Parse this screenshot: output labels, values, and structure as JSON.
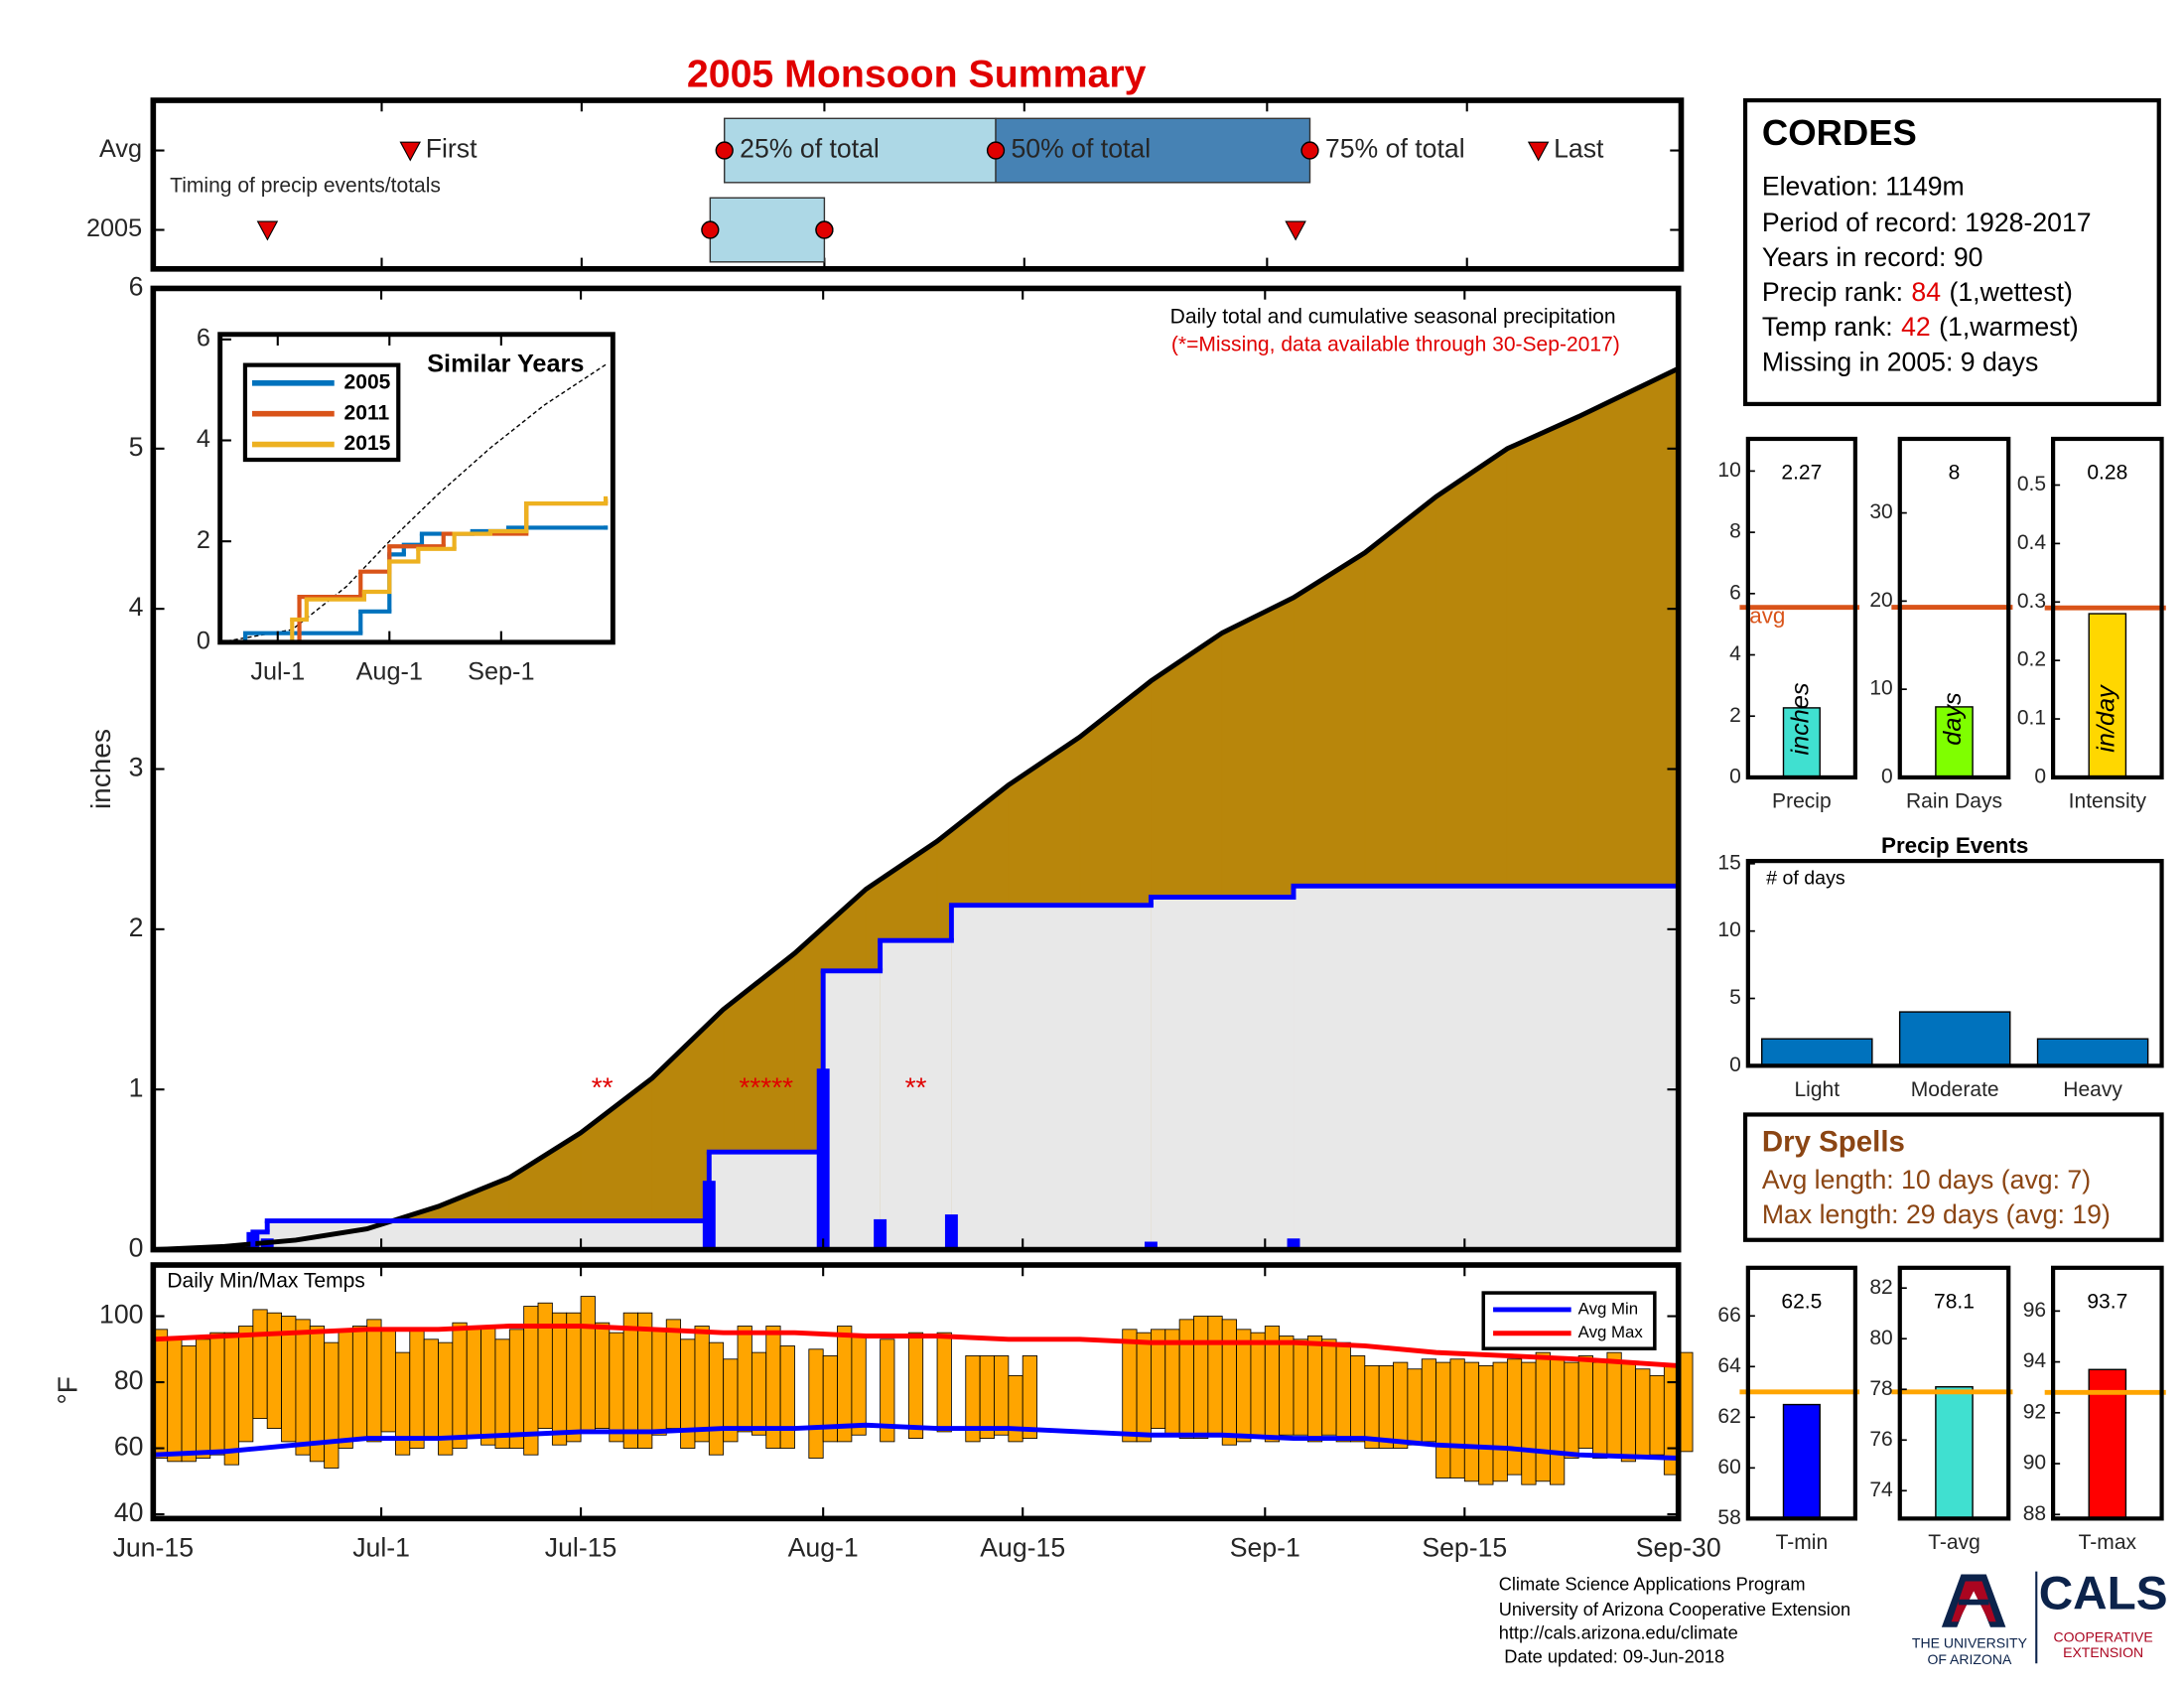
{
  "title": "2005 Monsoon Summary",
  "chart_data": [
    {
      "type": "timeline",
      "annotation": "Timing of precip events/totals",
      "xlim": [
        0,
        107
      ],
      "xticks": [
        0,
        16,
        30,
        47,
        61,
        78,
        92,
        107
      ],
      "marker_labels": {
        "first": "First",
        "p25": "25% of total",
        "p50": "50% of total",
        "p75": "75% of total",
        "last": "Last"
      },
      "rows": [
        {
          "name": "Avg",
          "first": 18,
          "p25": 40,
          "p50": 59,
          "p75": 81,
          "last": 97
        },
        {
          "name": "2005",
          "first": 8,
          "p25": 39,
          "p50": 47,
          "p75": 47,
          "last": 80
        }
      ],
      "colors": {
        "lower": "#add8e6",
        "upper": "#4682b4",
        "marker": "#e00000"
      }
    },
    {
      "type": "cumulative",
      "title": "Daily total and cumulative seasonal precipitation",
      "subtitle": "(*=Missing, data available through 30-Sep-2017)",
      "ylabel": "inches",
      "xlim": [
        0,
        107
      ],
      "ylim": [
        0,
        6
      ],
      "yticks": [
        0,
        1,
        2,
        3,
        4,
        5,
        6
      ],
      "xticks": [
        0,
        16,
        30,
        47,
        61,
        78,
        92,
        107
      ],
      "average_cumulative": {
        "color": "#b8860b",
        "line_color": "#000000",
        "x": [
          0,
          5,
          10,
          15,
          20,
          25,
          30,
          35,
          40,
          45,
          50,
          55,
          60,
          65,
          70,
          75,
          80,
          85,
          90,
          95,
          100,
          107
        ],
        "values": [
          0,
          0.02,
          0.06,
          0.13,
          0.27,
          0.45,
          0.73,
          1.07,
          1.5,
          1.85,
          2.25,
          2.55,
          2.9,
          3.2,
          3.55,
          3.85,
          4.07,
          4.35,
          4.7,
          5.0,
          5.2,
          5.5
        ]
      },
      "cumulative_2005": {
        "color": "#0000ff",
        "fill": "#e8e8e8",
        "x": [
          0,
          7,
          8,
          39,
          47,
          51,
          56,
          70,
          80,
          107
        ],
        "values": [
          0,
          0.11,
          0.18,
          0.61,
          1.74,
          1.93,
          2.15,
          2.2,
          2.27,
          2.27
        ]
      },
      "daily_2005": {
        "color": "#0000ff",
        "x": [
          7,
          8,
          39,
          47,
          51,
          56,
          70,
          80
        ],
        "values": [
          0.11,
          0.07,
          0.43,
          1.13,
          0.19,
          0.22,
          0.05,
          0.07
        ]
      },
      "missing": {
        "color": "#e00000",
        "y": 1,
        "x": [
          31.5,
          43,
          53.5
        ],
        "labels": [
          "**",
          "*****",
          "**"
        ]
      }
    },
    {
      "type": "line",
      "title": "Similar Years",
      "xlim": [
        0,
        109
      ],
      "ylim": [
        0,
        6.1
      ],
      "yticks": [
        0,
        2,
        4,
        6
      ],
      "xticks": [
        {
          "value": 16,
          "label": "Jul-1"
        },
        {
          "value": 47,
          "label": "Aug-1"
        },
        {
          "value": 78,
          "label": "Sep-1"
        }
      ],
      "series": [
        {
          "name": "2005",
          "color": "#0072bd",
          "x": [
            0,
            7,
            39,
            47,
            51,
            56,
            70,
            80,
            107
          ],
          "values": [
            0,
            0.18,
            0.61,
            1.74,
            1.93,
            2.15,
            2.2,
            2.27,
            2.27
          ]
        },
        {
          "name": "2011",
          "color": "#d95319",
          "x": [
            0,
            22,
            39,
            47,
            62,
            85,
            107
          ],
          "values": [
            0,
            0.9,
            1.4,
            1.9,
            2.15,
            2.75,
            2.8
          ]
        },
        {
          "name": "2015",
          "color": "#edb120",
          "x": [
            0,
            20,
            24,
            40,
            47,
            55,
            65,
            75,
            85,
            107
          ],
          "values": [
            0,
            0.45,
            0.85,
            1.0,
            1.6,
            1.85,
            2.15,
            2.2,
            2.75,
            2.85
          ]
        }
      ],
      "average": {
        "color": "#000000",
        "x": [
          0,
          20,
          35,
          47,
          60,
          75,
          90,
          107
        ],
        "values": [
          0,
          0.25,
          1.1,
          2.0,
          2.9,
          3.85,
          4.7,
          5.5
        ]
      }
    },
    {
      "type": "bar",
      "categories": [
        "Precip"
      ],
      "values": [
        2.27
      ],
      "show_values": true,
      "color": "#40e0d0",
      "unit_label": "inches",
      "average": 5.55,
      "average_label": "avg",
      "average_color": "#d95319",
      "ylim": [
        0,
        11.05
      ],
      "yticks": [
        0,
        2,
        4,
        6,
        8,
        10
      ]
    },
    {
      "type": "bar",
      "categories": [
        "Rain Days"
      ],
      "values": [
        8
      ],
      "show_values": true,
      "color": "#7fff00",
      "unit_label": "days",
      "average": 19.3,
      "average_color": "#d95319",
      "ylim": [
        0,
        38.4
      ],
      "yticks": [
        0,
        10,
        20,
        30
      ]
    },
    {
      "type": "bar",
      "categories": [
        "Intensity"
      ],
      "values": [
        0.28
      ],
      "show_values": true,
      "color": "#ffd700",
      "unit_label": "in/day",
      "average": 0.29,
      "average_color": "#d95319",
      "ylim": [
        0,
        0.579
      ],
      "yticks": [
        0,
        0.1,
        0.2,
        0.3,
        0.4,
        0.5
      ]
    },
    {
      "type": "bar",
      "title": "Precip Events",
      "annotation": "# of days",
      "categories": [
        "Light",
        "Moderate",
        "Heavy"
      ],
      "values": [
        2,
        4,
        2
      ],
      "color": "#0072bd",
      "ylim": [
        0,
        15.2
      ],
      "yticks": [
        0,
        5,
        10,
        15
      ]
    },
    {
      "type": "range_bar",
      "title": "Daily Min/Max Temps",
      "ylabel": "°F",
      "xlim": [
        0,
        107
      ],
      "ylim": [
        38.7,
        115.5
      ],
      "yticks": [
        40,
        60,
        80,
        100
      ],
      "xticks": [
        {
          "value": 0,
          "label": "Jun-15"
        },
        {
          "value": 16,
          "label": "Jul-1"
        },
        {
          "value": 30,
          "label": "Jul-15"
        },
        {
          "value": 47,
          "label": "Aug-1"
        },
        {
          "value": 61,
          "label": "Aug-15"
        },
        {
          "value": 78,
          "label": "Sep-1"
        },
        {
          "value": 92,
          "label": "Sep-15"
        },
        {
          "value": 107,
          "label": "Sep-30"
        }
      ],
      "color": "#ffa500",
      "x": [
        0,
        1,
        2,
        3,
        4,
        5,
        6,
        7,
        8,
        9,
        10,
        11,
        12,
        13,
        14,
        15,
        16,
        17,
        18,
        19,
        20,
        21,
        22,
        23,
        24,
        25,
        26,
        27,
        28,
        29,
        30,
        31,
        32,
        33,
        34,
        35,
        36,
        37,
        38,
        39,
        40,
        41,
        42,
        43,
        44,
        45,
        46,
        47,
        48,
        49,
        50,
        51,
        52,
        53,
        54,
        55,
        56,
        57,
        58,
        59,
        60,
        61,
        62,
        63,
        64,
        65,
        66,
        67,
        68,
        69,
        70,
        71,
        72,
        73,
        74,
        75,
        76,
        77,
        78,
        79,
        80,
        81,
        82,
        83,
        84,
        85,
        86,
        87,
        88,
        89,
        90,
        91,
        92,
        93,
        94,
        95,
        96,
        97,
        98,
        99,
        100,
        101,
        102,
        103,
        104,
        105,
        106,
        107
      ],
      "max": [
        96,
        93,
        91,
        93,
        95,
        95,
        97,
        102,
        101,
        100,
        99,
        97,
        92,
        96,
        97,
        99,
        96,
        89,
        96,
        93,
        92,
        98,
        97,
        97,
        93,
        96,
        103,
        104,
        101,
        101,
        106,
        98,
        95,
        101,
        101,
        96,
        99,
        93,
        97,
        92,
        87,
        97,
        89,
        97,
        91,
        null,
        90,
        88,
        97,
        94,
        null,
        93,
        null,
        95,
        null,
        95,
        null,
        88,
        88,
        88,
        82,
        88,
        null,
        null,
        null,
        null,
        null,
        null,
        96,
        95,
        96,
        96,
        99,
        100,
        100,
        99,
        96,
        95,
        97,
        94,
        93,
        94,
        93,
        92,
        88,
        85,
        85,
        86,
        84,
        87,
        86,
        87,
        86,
        85,
        86,
        87,
        86,
        89,
        87,
        86,
        88,
        86,
        89,
        86,
        84,
        82,
        85,
        89
      ],
      "min": [
        57,
        56,
        56,
        57,
        58,
        55,
        62,
        69,
        66,
        62,
        58,
        56,
        54,
        60,
        63,
        62,
        65,
        58,
        60,
        63,
        58,
        60,
        63,
        61,
        60,
        60,
        58,
        66,
        61,
        62,
        65,
        66,
        62,
        60,
        60,
        64,
        66,
        60,
        62,
        58,
        62,
        65,
        64,
        60,
        60,
        null,
        57,
        62,
        62,
        64,
        null,
        62,
        null,
        63,
        null,
        65,
        null,
        62,
        63,
        64,
        62,
        63,
        null,
        null,
        null,
        null,
        null,
        null,
        62,
        62,
        66,
        64,
        63,
        63,
        64,
        61,
        62,
        63,
        62,
        64,
        64,
        62,
        64,
        62,
        62,
        60,
        60,
        60,
        61,
        62,
        51,
        51,
        50,
        49,
        50,
        52,
        49,
        50,
        49,
        57,
        60,
        57,
        58,
        56,
        57,
        58,
        52,
        59
      ],
      "series": [
        {
          "name": "Avg Min",
          "color": "#0000ff",
          "x": [
            0,
            5,
            10,
            15,
            20,
            25,
            30,
            35,
            40,
            45,
            50,
            55,
            60,
            65,
            70,
            75,
            80,
            85,
            90,
            95,
            100,
            107
          ],
          "values": [
            58,
            59,
            61,
            63,
            63,
            64,
            65,
            65,
            66,
            66,
            67,
            66,
            66,
            65,
            64,
            64,
            63,
            63,
            61,
            60,
            58,
            57
          ]
        },
        {
          "name": "Avg Max",
          "color": "#ff0000",
          "x": [
            0,
            5,
            10,
            15,
            20,
            25,
            30,
            35,
            40,
            45,
            50,
            55,
            60,
            65,
            70,
            75,
            80,
            85,
            90,
            95,
            100,
            107
          ],
          "values": [
            93,
            94,
            95,
            96,
            96,
            97,
            97,
            96,
            95,
            95,
            94,
            94,
            93,
            93,
            92,
            92,
            92,
            91,
            89,
            88,
            87,
            85
          ]
        }
      ]
    },
    {
      "type": "bar",
      "categories": [
        "T-min"
      ],
      "values": [
        62.5
      ],
      "show_values": true,
      "color": "#0000ff",
      "average": 63,
      "average_color": "#ffa500",
      "ylim": [
        58,
        67.9
      ],
      "yticks": [
        58,
        60,
        62,
        64,
        66
      ]
    },
    {
      "type": "bar",
      "categories": [
        "T-avg"
      ],
      "values": [
        78.1
      ],
      "show_values": true,
      "color": "#40e0d0",
      "average": 77.9,
      "average_color": "#ffa500",
      "ylim": [
        72.9,
        82.8
      ],
      "yticks": [
        74,
        76,
        78,
        80,
        82
      ]
    },
    {
      "type": "bar",
      "categories": [
        "T-max"
      ],
      "values": [
        93.7
      ],
      "show_values": true,
      "color": "#ff0000",
      "average": 92.8,
      "average_color": "#ffa500",
      "ylim": [
        87.84,
        97.7
      ],
      "yticks": [
        88,
        90,
        92,
        94,
        96
      ]
    }
  ],
  "station": {
    "name": "CORDES",
    "elevation": "Elevation: 1149m",
    "period": "Period of record: 1928-2017",
    "years": "Years in record: 90",
    "precip_rank": {
      "label": "Precip rank:",
      "value": 84,
      "note": "(1,wettest)"
    },
    "temp_rank": {
      "label": "Temp rank:",
      "value": 42,
      "note": "(1,warmest)"
    },
    "missing": "Missing in 2005: 9 days"
  },
  "dry_spells": {
    "title": "Dry Spells",
    "avg_length": "Avg length: 10 days (avg: 7)",
    "max_length": "Max length: 29 days (avg: 19)"
  },
  "footer": {
    "lines": [
      "Climate Science Applications Program",
      "University of Arizona Cooperative Extension",
      "http://cals.arizona.edu/climate",
      "Date updated: 09-Jun-2018"
    ]
  },
  "logos": {
    "ua": [
      "THE UNIVERSITY",
      "OF ARIZONA"
    ],
    "cals": "CALS",
    "cals_sub": [
      "COOPERATIVE",
      "EXTENSION"
    ]
  }
}
